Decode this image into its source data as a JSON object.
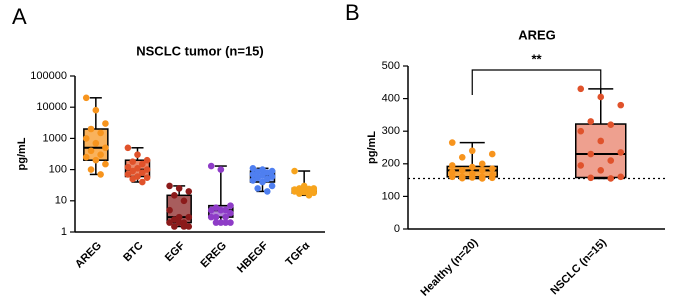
{
  "chart_data": [
    {
      "type": "box",
      "panel_label": "A",
      "title": "NSCLC tumor (n=15)",
      "ylabel": "pg/mL",
      "log_scale": true,
      "ylim": [
        1,
        100000
      ],
      "yticks": [
        1,
        10,
        100,
        1000,
        10000,
        100000
      ],
      "groups": [
        {
          "name": "AREG",
          "color": "#f7941d",
          "fill": "#f9b25c",
          "min": 70,
          "q1": 200,
          "median": 500,
          "q3": 2000,
          "max": 20000,
          "points": [
            20000,
            8000,
            3000,
            2000,
            1500,
            1000,
            700,
            500,
            400,
            300,
            250,
            200,
            150,
            100,
            70
          ]
        },
        {
          "name": "BTC",
          "color": "#e0522b",
          "fill": "#ea8a6c",
          "min": 40,
          "q1": 60,
          "median": 100,
          "q3": 200,
          "max": 500,
          "points": [
            500,
            300,
            200,
            180,
            150,
            120,
            110,
            100,
            90,
            80,
            70,
            60,
            55,
            50,
            40
          ]
        },
        {
          "name": "EGF",
          "color": "#8b1a1a",
          "fill": "#a85d5d",
          "min": 1.5,
          "q1": 2,
          "median": 3,
          "q3": 15,
          "max": 30,
          "points": [
            30,
            25,
            20,
            15,
            10,
            5,
            3,
            3,
            2.5,
            2,
            2,
            2,
            1.5,
            1.5,
            1.5
          ]
        },
        {
          "name": "EREG",
          "color": "#8e3cc7",
          "fill": "#b283d8",
          "min": 2,
          "q1": 3,
          "median": 5,
          "q3": 7,
          "max": 130,
          "points": [
            130,
            100,
            7,
            6,
            5,
            5,
            5,
            4,
            3,
            3,
            3,
            2,
            2,
            2,
            2
          ]
        },
        {
          "name": "HBEGF",
          "color": "#4f7ff0",
          "fill": "#8eacf4",
          "min": 20,
          "q1": 40,
          "median": 60,
          "q3": 90,
          "max": 110,
          "points": [
            110,
            100,
            90,
            85,
            80,
            70,
            65,
            60,
            55,
            50,
            45,
            40,
            30,
            25,
            20
          ]
        },
        {
          "name": "TGFα",
          "color": "#f7a41d",
          "fill": "#f9c068",
          "min": 15,
          "q1": 18,
          "median": 22,
          "q3": 25,
          "max": 90,
          "points": [
            90,
            30,
            25,
            25,
            24,
            23,
            22,
            22,
            21,
            20,
            20,
            19,
            18,
            17,
            15
          ]
        }
      ]
    },
    {
      "type": "box",
      "panel_label": "B",
      "title": "AREG",
      "ylabel": "pg/mL",
      "log_scale": false,
      "ylim": [
        0,
        500
      ],
      "yticks": [
        0,
        100,
        200,
        300,
        400,
        500
      ],
      "reference_line": 155,
      "annotation": "**",
      "groups": [
        {
          "name": "Healthy (n=20)",
          "color": "#f7941d",
          "fill": "#f9a73f",
          "min": 155,
          "q1": 160,
          "median": 180,
          "q3": 192,
          "max": 265,
          "points": [
            265,
            240,
            230,
            220,
            200,
            195,
            190,
            185,
            180,
            180,
            175,
            170,
            165,
            160,
            160,
            160,
            158,
            157,
            156,
            155
          ]
        },
        {
          "name": "NSCLC (n=15)",
          "color": "#e0522b",
          "fill": "#eea08f",
          "min": 155,
          "q1": 158,
          "median": 230,
          "q3": 322,
          "max": 430,
          "points": [
            430,
            405,
            380,
            330,
            320,
            300,
            270,
            235,
            230,
            210,
            195,
            180,
            160,
            157,
            155
          ]
        }
      ]
    }
  ]
}
